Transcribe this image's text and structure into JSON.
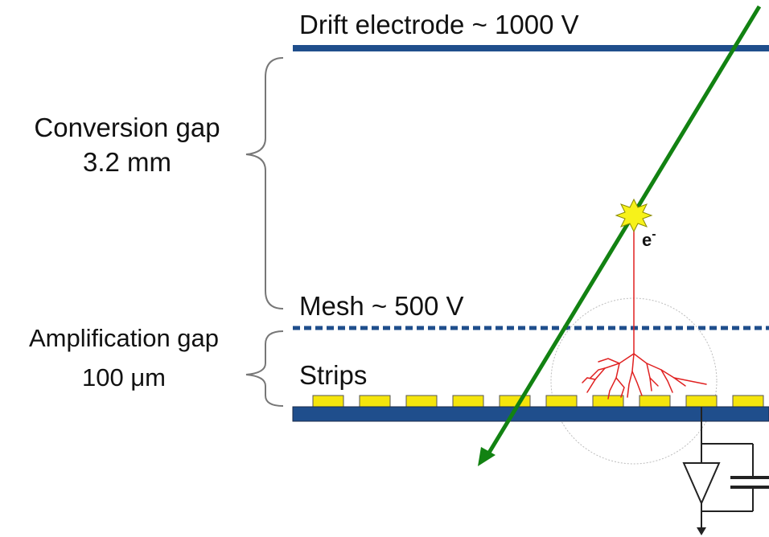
{
  "labels": {
    "drift_electrode": "Drift electrode ~ 1000 V",
    "conversion_gap_title": "Conversion gap",
    "conversion_gap_value": "3.2 mm",
    "mesh": "Mesh ~ 500 V",
    "amplification_gap_title": "Amplification gap",
    "amplification_gap_value": "100 μm",
    "strips": "Strips",
    "electron": "e",
    "electron_charge": "-"
  },
  "colors": {
    "electrode": "#1f4e8c",
    "track": "#128212",
    "strip": "#f5e50c",
    "avalanche": "#e02020",
    "spark": "#f7f21a",
    "brace": "#777777",
    "circuit": "#222222"
  }
}
